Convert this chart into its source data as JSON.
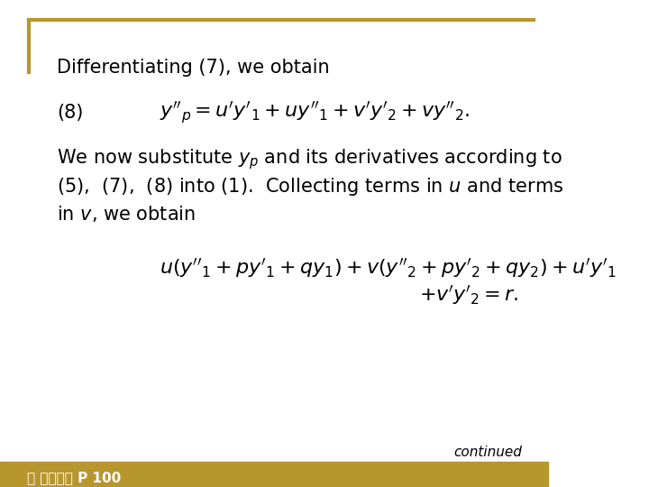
{
  "background_color": "#ffffff",
  "border_color": "#b8962e",
  "border_thickness": 3,
  "title_text": "Differentiating (7), we obtain",
  "equation_8_label": "(8)",
  "equation_8": "$y''_p = u'y'_1 + uy''_1 + v'y'_2 + vy''_2.$",
  "paragraph": "We now substitute $y_p$ and its derivatives according to\n(5),  (7),  (8) into (1).  Collecting terms in $u$ and terms\nin $v$, we obtain",
  "equation_bottom_line1": "$u(y''_1 + py'_1 + qy_1) + v(y''_2 + py'_2 + qy_2) + u'y'_1$",
  "equation_bottom_line2": "$+ v'y'_2 = r.$",
  "continued_text": "continued",
  "footer_text": "ⓘ 歐亞書局 P 100",
  "text_color": "#000000",
  "footer_color": "#b8962e",
  "font_size_title": 15,
  "font_size_eq": 15,
  "font_size_para": 15,
  "font_size_footer": 11,
  "font_size_continued": 11
}
